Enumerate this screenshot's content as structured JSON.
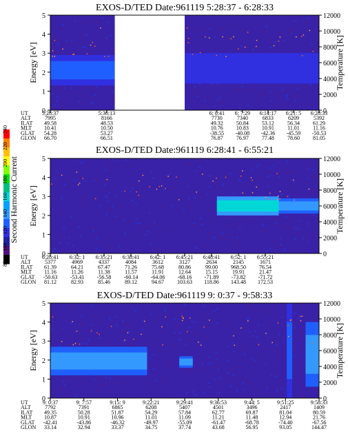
{
  "colorbar": {
    "label": "Second Harmonic Current",
    "ticks": [
      "80",
      "100",
      "120",
      "140",
      "160",
      "180",
      "200",
      "220",
      "240"
    ]
  },
  "chart_data": [
    {
      "type": "heatmap",
      "title": "EXOS-D/TED   Date:961119   5:28:37 - 6:28:33",
      "ylabel": "Energy [eV]",
      "ylabel_right": "Temperature [K]",
      "ylim": [
        0,
        5
      ],
      "ylim_right": [
        0,
        12000
      ],
      "yticks": [
        "0",
        "1",
        "2",
        "3",
        "4",
        "5"
      ],
      "yticks_right": [
        "0",
        "2000",
        "4000",
        "6000",
        "8000",
        "10000",
        "12000"
      ],
      "data_gap": [
        0.24,
        0.5
      ],
      "ephemeris_labels": [
        "UT",
        "ALT",
        "ILAT",
        "MLT",
        "GLAT",
        "GLON"
      ],
      "ephemeris": [
        {
          "x": 0.0,
          "values": [
            "5:28:37",
            "7995",
            "49.58",
            "10.41",
            "54.28",
            "66.70"
          ]
        },
        {
          "x": 0.21,
          "values": [
            "5:36:13",
            "8166",
            "48.53",
            "10.50",
            "53.27",
            "66.51"
          ]
        },
        {
          "x": 0.62,
          "values": [
            "6: 0:41",
            "7730",
            "49.32",
            "10.76",
            "-38.55",
            "76.87"
          ]
        },
        {
          "x": 0.715,
          "values": [
            "6: 7:29",
            "7340",
            "50.84",
            "10.83",
            "-40.08",
            "76.97"
          ]
        },
        {
          "x": 0.81,
          "values": [
            "6:14:17",
            "6833",
            "53.12",
            "10.91",
            "-42.36",
            "77.48"
          ]
        },
        {
          "x": 0.905,
          "values": [
            "6:21: 5",
            "6209",
            "56.34",
            "11.01",
            "-45.59",
            "78.60"
          ]
        },
        {
          "x": 1.0,
          "values": [
            "6:28:33",
            "5392",
            "61.29",
            "11.16",
            "-50.53",
            "81.05"
          ]
        }
      ],
      "bands": [
        {
          "x0": 0.0,
          "x1": 0.24,
          "e0": 1.3,
          "e1": 2.9,
          "level": 140
        },
        {
          "x0": 0.5,
          "x1": 1.0,
          "e0": 1.4,
          "e1": 3.0,
          "level": 135
        }
      ]
    },
    {
      "type": "heatmap",
      "title": "EXOS-D/TED   Date:961119   6:28:41 - 6:55:21",
      "ylabel": "Energy [eV]",
      "ylabel_right": "Temperature [K]",
      "ylim": [
        0,
        5
      ],
      "ylim_right": [
        0,
        12000
      ],
      "yticks": [
        "0",
        "1",
        "2",
        "3",
        "4",
        "5"
      ],
      "yticks_right": [
        "0",
        "2000",
        "4000",
        "6000",
        "8000",
        "10000",
        "12000"
      ],
      "ephemeris_labels": [
        "UT",
        "ALT",
        "ILAT",
        "MLT",
        "GLAT",
        "GLON"
      ],
      "ephemeris": [
        {
          "x": 0.0,
          "values": [
            "6:28:41",
            "5377",
            "61.39",
            "11.16",
            "-50.63",
            "81.12"
          ]
        },
        {
          "x": 0.1,
          "values": [
            "6:32: 1",
            "4969",
            "64.21",
            "11.26",
            "-53.41",
            "82.93"
          ]
        },
        {
          "x": 0.2,
          "values": [
            "6:35:21",
            "4337",
            "67.47",
            "11.38",
            "-56.58",
            "85.46"
          ]
        },
        {
          "x": 0.3,
          "values": [
            "6:38:41",
            "4084",
            "71.26",
            "11.57",
            "-60.14",
            "89.12"
          ]
        },
        {
          "x": 0.4,
          "values": [
            "6:42: 1",
            "3612",
            "75.68",
            "11.91",
            "-64.06",
            "94.67"
          ]
        },
        {
          "x": 0.5,
          "values": [
            "6:45:21",
            "3127",
            "80.86",
            "12.64",
            "-68.16",
            "103.63"
          ]
        },
        {
          "x": 0.6,
          "values": [
            "6:48:41",
            "2634",
            "99.00",
            "15.15",
            "-71.89",
            "118.86"
          ]
        },
        {
          "x": 0.7,
          "values": [
            "6:52: 1",
            "2145",
            "968.50",
            "19.91",
            "-73.82",
            "143.48"
          ]
        },
        {
          "x": 0.8,
          "values": [
            "6:55:21",
            "1671",
            "76.54",
            "21.47",
            "-71.72",
            "172.53"
          ]
        }
      ],
      "bands": [
        {
          "x0": 0.62,
          "x1": 0.85,
          "e0": 2.0,
          "e1": 3.0,
          "level": 160
        },
        {
          "x0": 0.85,
          "x1": 1.0,
          "e0": 2.1,
          "e1": 2.9,
          "level": 150
        }
      ]
    },
    {
      "type": "heatmap",
      "title": "EXOS-D/TED   Date:961119   9: 0:37 - 9:58:33",
      "ylabel": "Energy [eV]",
      "ylabel_right": "Temperature [K]",
      "ylim": [
        0,
        5
      ],
      "ylim_right": [
        0,
        12000
      ],
      "yticks": [
        "0",
        "1",
        "2",
        "3",
        "4",
        "5"
      ],
      "yticks_right": [
        "0",
        "2000",
        "4000",
        "6000",
        "8000",
        "10000",
        "12000"
      ],
      "ephemeris_labels": [
        "UT",
        "ALT",
        "ILAT",
        "MLT",
        "GLAT",
        "GLON"
      ],
      "ephemeris": [
        {
          "x": 0.0,
          "values": [
            "9: 0:37",
            "7792",
            "49.35",
            "10.87",
            "-42.41",
            "33.14"
          ]
        },
        {
          "x": 0.125,
          "values": [
            "9: 7:57",
            "7391",
            "50.28",
            "10.91",
            "-43.86",
            "32.94"
          ]
        },
        {
          "x": 0.25,
          "values": [
            "9:15: 9",
            "6865",
            "51.87",
            "10.96",
            "-46.32",
            "33.37"
          ]
        },
        {
          "x": 0.375,
          "values": [
            "9:22:21",
            "6208",
            "54.29",
            "11.01",
            "-49.97",
            "34.75"
          ]
        },
        {
          "x": 0.5,
          "values": [
            "9:29:41",
            "5407",
            "57.84",
            "11.09",
            "-55.09",
            "37.74"
          ]
        },
        {
          "x": 0.625,
          "values": [
            "9:36:53",
            "4501",
            "62.77",
            "11.21",
            "-61.47",
            "43.68"
          ]
        },
        {
          "x": 0.75,
          "values": [
            "9:44: 5",
            "3496",
            "69.87",
            "11.48",
            "-68.78",
            "56.95"
          ]
        },
        {
          "x": 0.875,
          "values": [
            "9:51:25",
            "2417",
            "81.04",
            "12.94",
            "-74.40",
            "93.05"
          ]
        },
        {
          "x": 1.0,
          "values": [
            "9:58:33",
            "1409",
            "80.59",
            "21.76",
            "-67.56",
            "144.47"
          ]
        }
      ],
      "bands": [
        {
          "x0": 0.0,
          "x1": 0.36,
          "e0": 1.2,
          "e1": 2.7,
          "level": 150
        },
        {
          "x0": 0.48,
          "x1": 0.53,
          "e0": 1.6,
          "e1": 2.2,
          "level": 150
        },
        {
          "x0": 0.88,
          "x1": 0.9,
          "e0": 0.0,
          "e1": 5.0,
          "level": 140
        },
        {
          "x0": 0.95,
          "x1": 1.0,
          "e0": 0.6,
          "e1": 4.0,
          "level": 150
        }
      ]
    }
  ]
}
